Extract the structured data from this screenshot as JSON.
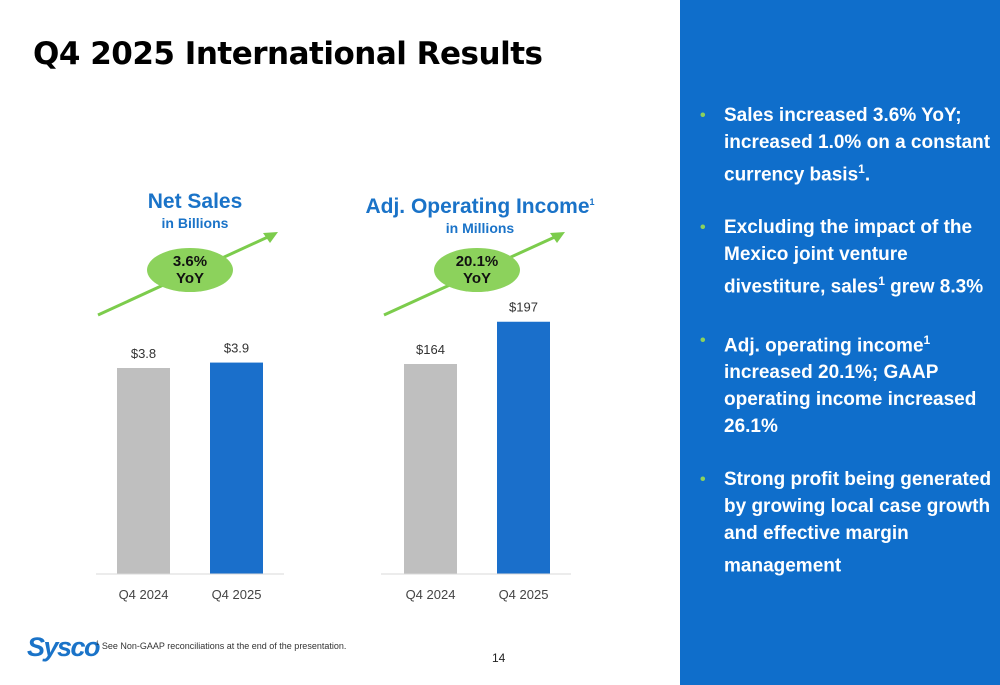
{
  "title": "Q4 2025 International Results",
  "chart_data": [
    {
      "type": "bar",
      "title": "Net Sales",
      "subtitle": "in Billions",
      "categories": [
        "Q4 2024",
        "Q4 2025"
      ],
      "values": [
        3.8,
        3.9
      ],
      "value_labels": [
        "$3.8",
        "$3.9"
      ],
      "colors": [
        "#bfbfbf",
        "#1a6fcb"
      ],
      "badge": {
        "line1": "3.6%",
        "line2": "YoY"
      }
    },
    {
      "type": "bar",
      "title": "Adj. Operating Income",
      "title_superscript": "1",
      "subtitle": "in Millions",
      "categories": [
        "Q4 2024",
        "Q4 2025"
      ],
      "values": [
        164,
        197
      ],
      "value_labels": [
        "$164",
        "$197"
      ],
      "colors": [
        "#bfbfbf",
        "#1a6fcb"
      ],
      "badge": {
        "line1": "20.1%",
        "line2": "YoY"
      }
    }
  ],
  "bullets": [
    {
      "parts": [
        "Sales increased 3.6% YoY; increased 1.0% on a constant currency basis",
        "1",
        "."
      ]
    },
    {
      "parts": [
        "Excluding the impact of the Mexico joint venture divestiture, sales",
        "1",
        " grew 8.3%"
      ]
    },
    {
      "parts": [
        "Adj. operating income",
        "1",
        " increased 20.1%; GAAP operating income increased 26.1%"
      ]
    },
    {
      "parts": [
        "Strong profit being generated by growing local case growth and effective margin management",
        "",
        ""
      ]
    }
  ],
  "logo": "Sysco",
  "footnote": {
    "marker": "1",
    "text": "See Non-GAAP reconciliations at the end of the presentation."
  },
  "page_number": "14",
  "colors": {
    "accent_blue": "#1a73c8",
    "panel_blue": "#0f6ecb",
    "green": "#8cd25c",
    "bar_gray": "#bfbfbf",
    "bar_blue": "#1a6fcb"
  }
}
